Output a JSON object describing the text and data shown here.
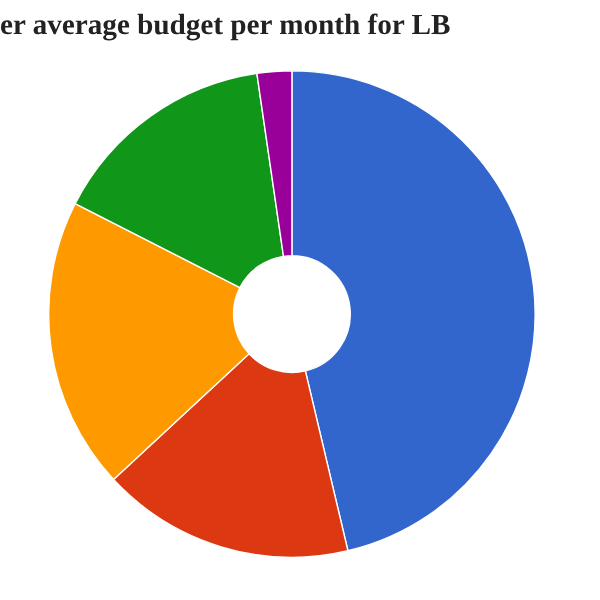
{
  "chart_data": {
    "type": "donut",
    "title": "er average budget per month for LB",
    "categories": [
      null,
      null,
      null,
      null,
      null
    ],
    "values": [
      46.3,
      16.8,
      19.4,
      15.2,
      2.3
    ],
    "colors": [
      "#3366cc",
      "#dc3912",
      "#ff9900",
      "#109618",
      "#990099"
    ]
  }
}
